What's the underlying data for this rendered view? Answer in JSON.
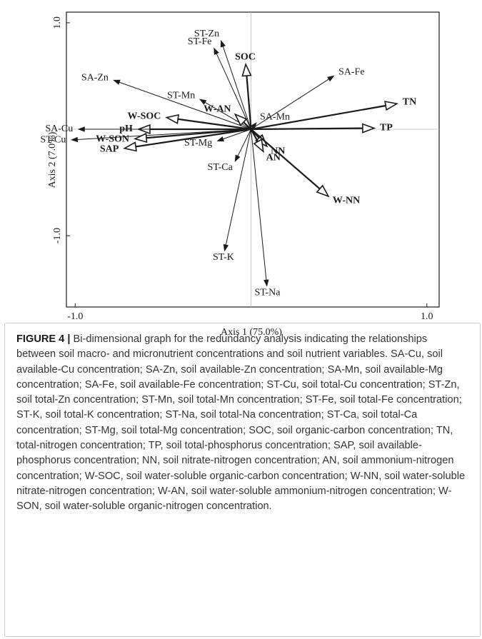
{
  "chart_data": {
    "type": "biplot",
    "x_label": "Axis 1 (75.0%)",
    "y_label": "Axis 2 (7.0%)",
    "xlim": [
      -1.05,
      1.07
    ],
    "ylim": [
      -1.67,
      1.1
    ],
    "xticks": [
      {
        "value": -1,
        "label": "-1.0"
      },
      {
        "value": 1,
        "label": "1.0"
      }
    ],
    "yticks": [
      {
        "value": -1,
        "label": "-1.0"
      },
      {
        "value": 1,
        "label": "1.0"
      }
    ],
    "color": "#1a1a1a",
    "arrows": [
      {
        "name": "ST-Zn",
        "x": -0.17,
        "y": 0.83,
        "bold": false
      },
      {
        "name": "ST-Fe",
        "x": -0.21,
        "y": 0.76,
        "bold": false
      },
      {
        "name": "SOC",
        "x": -0.03,
        "y": 0.61,
        "bold": true
      },
      {
        "name": "SA-Fe",
        "x": 0.47,
        "y": 0.5,
        "bold": false
      },
      {
        "name": "SA-Zn",
        "x": -0.78,
        "y": 0.46,
        "bold": false
      },
      {
        "name": "ST-Mn",
        "x": -0.29,
        "y": 0.28,
        "bold": false
      },
      {
        "name": "W-AN",
        "x": -0.09,
        "y": 0.14,
        "bold": true
      },
      {
        "name": "SA-Mn",
        "x": 0.03,
        "y": 0.06,
        "bold": false
      },
      {
        "name": "TN",
        "x": 0.83,
        "y": 0.24,
        "bold": true
      },
      {
        "name": "TP",
        "x": 0.7,
        "y": 0.01,
        "bold": true
      },
      {
        "name": "W-SOC",
        "x": -0.48,
        "y": 0.11,
        "bold": true
      },
      {
        "name": "pH",
        "x": -0.64,
        "y": 0,
        "bold": true
      },
      {
        "name": "SA-Cu",
        "x": -0.98,
        "y": 0,
        "bold": false
      },
      {
        "name": "ST-Cu",
        "x": -1.02,
        "y": -0.1,
        "bold": false
      },
      {
        "name": "W-SON",
        "x": -0.66,
        "y": -0.09,
        "bold": true
      },
      {
        "name": "SAP",
        "x": -0.72,
        "y": -0.18,
        "bold": true
      },
      {
        "name": "ST-Mg",
        "x": -0.19,
        "y": -0.11,
        "bold": false
      },
      {
        "name": "NN",
        "x": 0.09,
        "y": -0.16,
        "bold": true
      },
      {
        "name": "AN",
        "x": 0.07,
        "y": -0.21,
        "bold": true
      },
      {
        "name": "ST-Ca",
        "x": -0.09,
        "y": -0.3,
        "bold": false
      },
      {
        "name": "W-NN",
        "x": 0.44,
        "y": -0.63,
        "bold": true
      },
      {
        "name": "ST-K",
        "x": -0.15,
        "y": -1.14,
        "bold": false
      },
      {
        "name": "ST-Na",
        "x": 0.09,
        "y": -1.47,
        "bold": false
      }
    ]
  },
  "caption": {
    "label": "FIGURE 4 |",
    "text": "Bi-dimensional graph for the redundancy analysis indicating the relationships between soil macro- and micronutrient concentrations and soil nutrient variables. SA-Cu, soil available-Cu concentration; SA-Zn, soil available-Zn concentration; SA-Mn, soil available-Mg concentration; SA-Fe, soil available-Fe concentration; ST-Cu, soil total-Cu concentration; ST-Zn, soil total-Zn concentration; ST-Mn, soil total-Mn concentration; ST-Fe, soil total-Fe concentration; ST-K, soil total-K concentration; ST-Na, soil total-Na concentration; ST-Ca, soil total-Ca concentration; ST-Mg, soil total-Mg concentration; SOC, soil organic-carbon concentration; TN, total-nitrogen concentration; TP, soil total-phosphorus concentration; SAP, soil available-phosphorus concentration; NN, soil nitrate-nitrogen concentration; AN, soil ammonium-nitrogen concentration; W-SOC, soil water-soluble organic-carbon concentration; W-NN, soil water-soluble nitrate-nitrogen concentration; W-AN, soil water-soluble ammonium-nitrogen concentration; W-SON, soil water-soluble organic-nitrogen concentration."
  }
}
